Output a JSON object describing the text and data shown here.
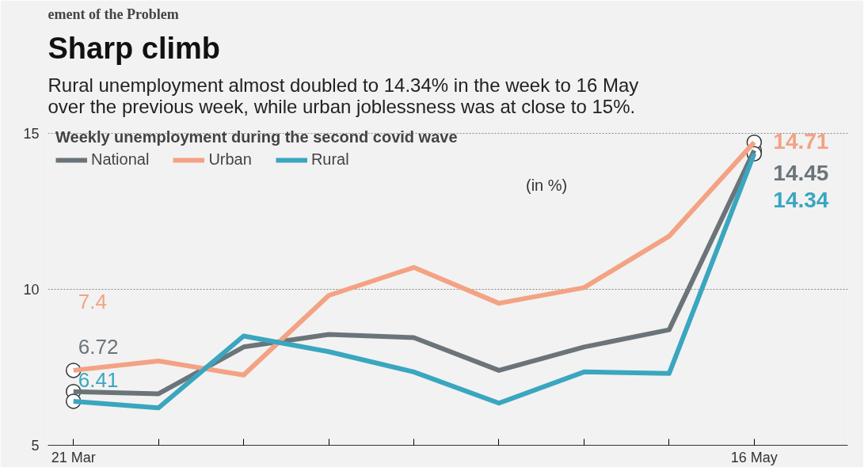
{
  "chart_data": {
    "type": "line",
    "title": "Sharp climb",
    "subtitle": "Rural unemployment almost doubled to 14.34% in the week to 16 May\nover the previous week, while urban joblessness was at close to 15%.",
    "legend_title": "Weekly unemployment during the second covid wave",
    "annotations": [
      "(in %)",
      "ement of the Problem"
    ],
    "categories": [
      "21 Mar",
      null,
      null,
      null,
      null,
      null,
      null,
      null,
      "16 May"
    ],
    "series": [
      {
        "name": "National",
        "color": "#6b7479",
        "values": [
          6.72,
          6.65,
          8.15,
          8.55,
          8.45,
          7.4,
          8.15,
          8.7,
          14.45
        ],
        "value_labels": [
          "6.72",
          null,
          null,
          null,
          null,
          null,
          null,
          null,
          "14.45"
        ]
      },
      {
        "name": "Urban",
        "color": "#f4a284",
        "values": [
          7.4,
          7.7,
          7.25,
          9.8,
          10.7,
          9.55,
          10.05,
          11.7,
          14.71
        ],
        "value_labels": [
          "7.4",
          null,
          null,
          null,
          null,
          null,
          null,
          null,
          "14.71"
        ]
      },
      {
        "name": "Rural",
        "color": "#3aa6bf",
        "values": [
          6.41,
          6.2,
          8.5,
          8.0,
          7.35,
          6.35,
          7.35,
          7.3,
          14.34
        ],
        "value_labels": [
          "6.41",
          null,
          null,
          null,
          null,
          null,
          null,
          null,
          "14.34"
        ]
      }
    ],
    "ylim": [
      5,
      15.4
    ],
    "yticks": [
      5,
      10,
      15
    ],
    "grid": "y",
    "legend": "top left",
    "line_style": "solid"
  }
}
